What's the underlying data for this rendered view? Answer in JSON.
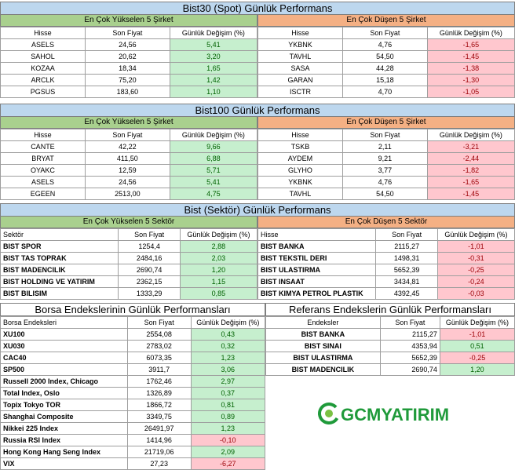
{
  "bist30": {
    "title": "Bist30 (Spot) Günlük Performans",
    "gainers_title": "En Çok Yükselen 5 Şirket",
    "losers_title": "En Çok Düşen 5 Şirket",
    "headers": [
      "Hisse",
      "Son Fiyat",
      "Günlük Değişim (%)"
    ],
    "gainers": [
      [
        "ASELS",
        "24,56",
        "5,41"
      ],
      [
        "SAHOL",
        "20,62",
        "3,20"
      ],
      [
        "KOZAA",
        "18,34",
        "1,65"
      ],
      [
        "ARCLK",
        "75,20",
        "1,42"
      ],
      [
        "PGSUS",
        "183,60",
        "1,10"
      ]
    ],
    "losers": [
      [
        "YKBNK",
        "4,76",
        "-1,65"
      ],
      [
        "TAVHL",
        "54,50",
        "-1,45"
      ],
      [
        "SASA",
        "44,28",
        "-1,38"
      ],
      [
        "GARAN",
        "15,18",
        "-1,30"
      ],
      [
        "ISCTR",
        "4,70",
        "-1,05"
      ]
    ]
  },
  "bist100": {
    "title": "Bist100 Günlük Performans",
    "gainers_title": "En Çok Yükselen 5 Şirket",
    "losers_title": "En Çok Düşen 5 Şirket",
    "headers": [
      "Hisse",
      "Son Fiyat",
      "Günlük Değişim (%)"
    ],
    "gainers": [
      [
        "CANTE",
        "42,22",
        "9,66"
      ],
      [
        "BRYAT",
        "411,50",
        "6,88"
      ],
      [
        "OYAKC",
        "12,59",
        "5,71"
      ],
      [
        "ASELS",
        "24,56",
        "5,41"
      ],
      [
        "EGEEN",
        "2513,00",
        "4,75"
      ]
    ],
    "losers": [
      [
        "TSKB",
        "2,11",
        "-3,21"
      ],
      [
        "AYDEM",
        "9,21",
        "-2,44"
      ],
      [
        "GLYHO",
        "3,77",
        "-1,82"
      ],
      [
        "YKBNK",
        "4,76",
        "-1,65"
      ],
      [
        "TAVHL",
        "54,50",
        "-1,45"
      ]
    ]
  },
  "sector": {
    "title": "Bist (Sektör) Günlük Performans",
    "gainers_title": "En Çok Yükselen 5 Sektör",
    "losers_title": "En Çok Düşen 5 Sektör",
    "headers_left": [
      "Sektör",
      "Son Fiyat",
      "Günlük Değişim (%)"
    ],
    "headers_right": [
      "Hisse",
      "Son Fiyat",
      "Günlük Değişim (%)"
    ],
    "gainers": [
      [
        "BIST SPOR",
        "1254,4",
        "2,88"
      ],
      [
        "BIST TAS TOPRAK",
        "2484,16",
        "2,03"
      ],
      [
        "BIST MADENCILIK",
        "2690,74",
        "1,20"
      ],
      [
        "BIST HOLDING VE YATIRIM",
        "2362,15",
        "1,15"
      ],
      [
        "BIST BILISIM",
        "1333,29",
        "0,85"
      ]
    ],
    "losers": [
      [
        "BIST BANKA",
        "2115,27",
        "-1,01"
      ],
      [
        "BIST TEKSTIL DERI",
        "1498,31",
        "-0,31"
      ],
      [
        "BIST ULASTIRMA",
        "5652,39",
        "-0,25"
      ],
      [
        "BIST INSAAT",
        "3434,81",
        "-0,24"
      ],
      [
        "BIST KIMYA PETROL PLASTIK",
        "4392,45",
        "-0,03"
      ]
    ]
  },
  "borsa": {
    "title": "Borsa Endekslerinin Günlük Performansları",
    "headers": [
      "Borsa Endeksleri",
      "Son Fiyat",
      "Günlük Değişim (%)"
    ],
    "rows": [
      [
        "XU100",
        "2554,08",
        "0,43"
      ],
      [
        "XU030",
        "2783,02",
        "0,32"
      ],
      [
        "CAC40",
        "6073,35",
        "1,23"
      ],
      [
        "SP500",
        "3911,7",
        "3,06"
      ],
      [
        "Russell 2000 Index, Chicago",
        "1762,46",
        "2,97"
      ],
      [
        "Total Index, Oslo",
        "1326,89",
        "0,37"
      ],
      [
        "Topix Tokyo TOR",
        "1866,72",
        "0,81"
      ],
      [
        "Shanghai Composite",
        "3349,75",
        "0,89"
      ],
      [
        "Nikkei 225 Index",
        "26491,97",
        "1,23"
      ],
      [
        "Russia RSI Index",
        "1414,96",
        "-0,10"
      ],
      [
        "Hong Kong Hang Seng Index",
        "21719,06",
        "2,09"
      ],
      [
        "VIX",
        "27,23",
        "-6,27"
      ]
    ]
  },
  "referans": {
    "title": "Referans Endekslerin  Günlük Performansları",
    "headers": [
      "Endeksler",
      "Son Fiyat",
      "Günlük Değişim (%)"
    ],
    "rows": [
      [
        "BIST BANKA",
        "2115,27",
        "-1,01"
      ],
      [
        "BIST SINAI",
        "4353,94",
        "0,51"
      ],
      [
        "BIST ULASTIRMA",
        "5652,39",
        "-0,25"
      ],
      [
        "BIST MADENCILIK",
        "2690,74",
        "1,20"
      ]
    ]
  },
  "logo": {
    "text_a": "GCM",
    "text_b": "YATIRIM"
  },
  "colors": {
    "title_bg": "#bdd7ee",
    "green_header": "#a9d08e",
    "red_header": "#f4b084",
    "pos_bg": "#c6efce",
    "neg_bg": "#ffc7ce"
  }
}
